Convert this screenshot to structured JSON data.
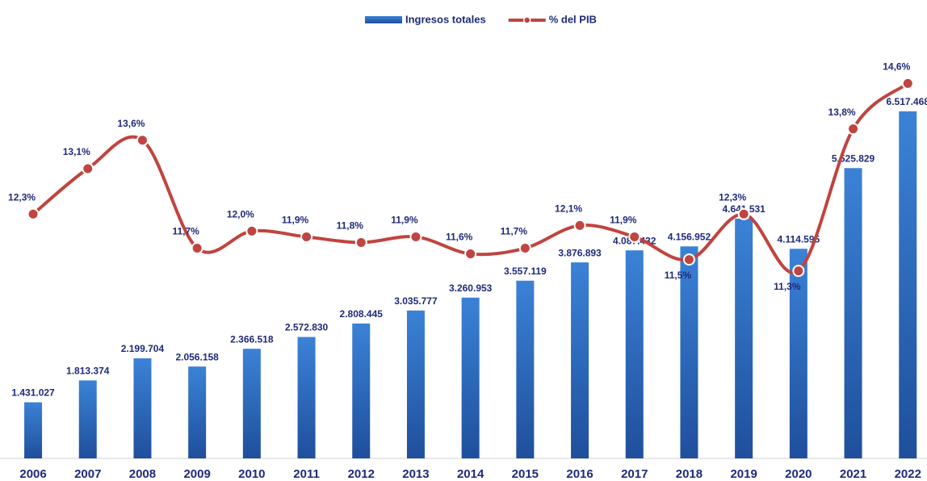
{
  "chart_data": {
    "type": "bar+line",
    "categories": [
      "2006",
      "2007",
      "2008",
      "2009",
      "2010",
      "2011",
      "2012",
      "2013",
      "2014",
      "2015",
      "2016",
      "2017",
      "2018",
      "2019",
      "2020",
      "2021",
      "2022"
    ],
    "series": [
      {
        "name": "Ingresos totales",
        "type": "bar",
        "color": "#2f6fc2",
        "values": [
          1431027,
          1813374,
          2199704,
          2056158,
          2366518,
          2572830,
          2808445,
          3035777,
          3260953,
          3557119,
          3876893,
          4087432,
          4156952,
          4641531,
          4114595,
          5525829,
          6517468
        ],
        "value_labels": [
          "1.431.027",
          "1.813.374",
          "2.199.704",
          "2.056.158",
          "2.366.518",
          "2.572.830",
          "2.808.445",
          "3.035.777",
          "3.260.953",
          "3.557.119",
          "3.876.893",
          "4.087.432",
          "4.156.952",
          "4.641.531",
          "4.114.595",
          "5.525.829",
          "6.517.468"
        ]
      },
      {
        "name": "% del PIB",
        "type": "line",
        "axis": "y2",
        "color": "#c0443f",
        "values": [
          12.3,
          13.1,
          13.6,
          11.7,
          12.0,
          11.9,
          11.8,
          11.9,
          11.6,
          11.7,
          12.1,
          11.9,
          11.5,
          12.3,
          11.3,
          13.8,
          14.6
        ],
        "value_labels": [
          "12,3%",
          "13,1%",
          "13,6%",
          "11,7%",
          "12,0%",
          "11,9%",
          "11,8%",
          "11,9%",
          "11,6%",
          "11,7%",
          "12,1%",
          "11,9%",
          "11,5%",
          "12,3%",
          "11,3%",
          "13,8%",
          "14,6%"
        ]
      }
    ],
    "ylim": [
      450000,
      7900000
    ],
    "y2lim": [
      8,
      15.5
    ],
    "legend": "top"
  }
}
